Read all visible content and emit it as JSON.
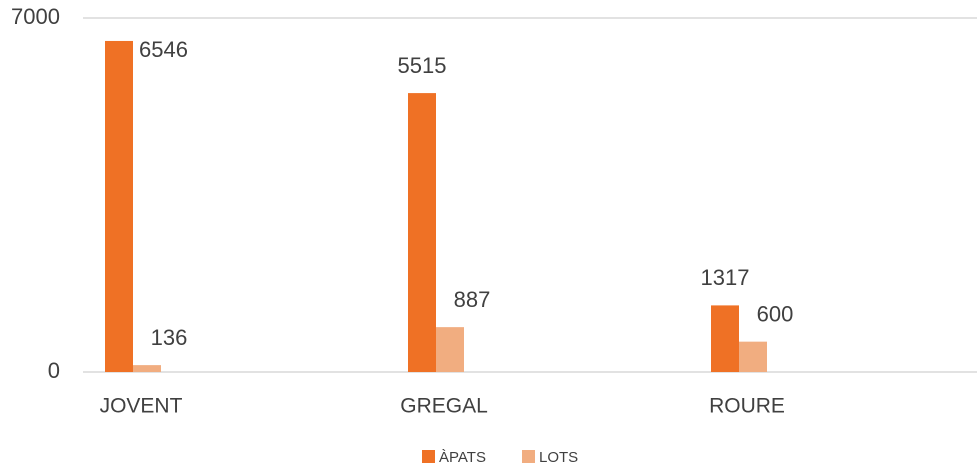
{
  "chart_data": {
    "type": "bar",
    "categories": [
      "JOVENT",
      "GREGAL",
      "ROURE"
    ],
    "series": [
      {
        "name": "ÀPATS",
        "color": "#ef7125",
        "values": [
          6546,
          5515,
          1317
        ]
      },
      {
        "name": "LOTS",
        "color": "#f1ad80",
        "values": [
          136,
          887,
          600
        ]
      }
    ],
    "ylim": [
      0,
      7000
    ],
    "yticks": [
      0,
      7000
    ],
    "grid": true,
    "legend": "bottom"
  }
}
